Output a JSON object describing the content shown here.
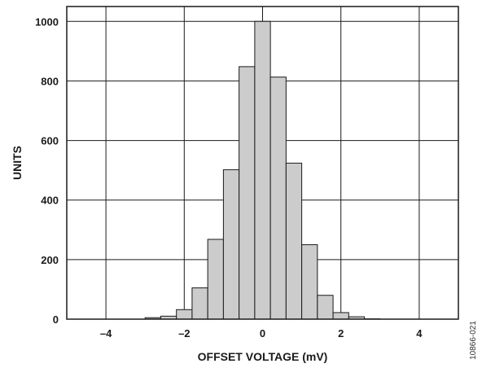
{
  "figure_id": "10866-021",
  "chart_data": {
    "type": "bar",
    "xlabel": "OFFSET VOLTAGE (mV)",
    "ylabel": "UNITS",
    "xlim": [
      -5,
      5
    ],
    "ylim": [
      0,
      1050
    ],
    "xticks": [
      -4,
      -2,
      0,
      2,
      4
    ],
    "xtick_labels": [
      "–4",
      "–2",
      "0",
      "2",
      "4"
    ],
    "yticks": [
      0,
      200,
      400,
      600,
      800,
      1000
    ],
    "ytick_labels": [
      "0",
      "200",
      "400",
      "600",
      "800",
      "1000"
    ],
    "grid": true,
    "bin_width": 0.4,
    "bin_centers": [
      -4.4,
      -4.0,
      -3.6,
      -3.2,
      -2.8,
      -2.4,
      -2.0,
      -1.6,
      -1.2,
      -0.8,
      -0.4,
      0.0,
      0.4,
      0.8,
      1.2,
      1.6,
      2.0,
      2.4,
      2.8,
      3.2,
      3.6,
      4.0,
      4.4
    ],
    "values": [
      0,
      0,
      0,
      0,
      5,
      10,
      32,
      105,
      268,
      502,
      848,
      1000,
      813,
      524,
      250,
      80,
      22,
      8,
      1,
      0,
      0,
      0,
      0
    ],
    "bar_color": "#cccccc",
    "bar_edge_color": "#1a1a1a"
  }
}
